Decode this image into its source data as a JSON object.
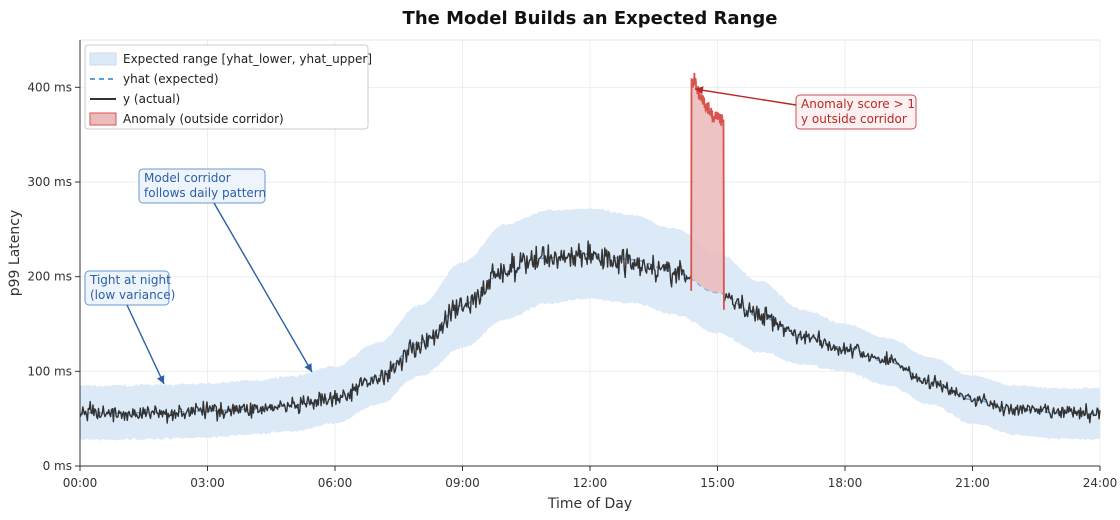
{
  "chart_data": {
    "type": "line",
    "title": "The Model Builds an Expected Range",
    "xlabel": "Time of Day",
    "ylabel": "p99 Latency",
    "x_unit": "hours",
    "xlim": [
      0,
      24
    ],
    "ylim": [
      0,
      450
    ],
    "x_ticks": [
      0,
      3,
      6,
      9,
      12,
      15,
      18,
      21,
      24
    ],
    "x_tick_labels": [
      "00:00",
      "03:00",
      "06:00",
      "09:00",
      "12:00",
      "15:00",
      "18:00",
      "21:00",
      "24:00"
    ],
    "y_ticks": [
      0,
      100,
      200,
      300,
      400
    ],
    "y_tick_labels": [
      "0 ms",
      "100 ms",
      "200 ms",
      "300 ms",
      "400 ms"
    ],
    "grid": true,
    "legend_position": "top-left",
    "series": [
      {
        "name": "Expected range  [yhat_lower, yhat_upper]",
        "kind": "band",
        "color": "#dce9f7",
        "x": [
          0,
          1,
          2,
          3,
          4,
          5,
          6,
          7,
          8,
          9,
          10,
          11,
          12,
          13,
          14,
          15,
          16,
          17,
          18,
          19,
          20,
          21,
          22,
          23,
          24
        ],
        "lower": [
          28,
          28,
          29,
          30,
          33,
          37,
          45,
          65,
          95,
          125,
          155,
          172,
          177,
          172,
          160,
          140,
          120,
          107,
          100,
          85,
          65,
          45,
          33,
          29,
          28
        ],
        "upper": [
          85,
          85,
          86,
          87,
          90,
          95,
          105,
          130,
          170,
          215,
          255,
          270,
          272,
          265,
          250,
          225,
          195,
          165,
          150,
          135,
          115,
          95,
          85,
          82,
          82
        ]
      },
      {
        "name": "yhat  (expected)",
        "kind": "line",
        "style": "dashed",
        "color": "#5aa0dc",
        "x": [
          0,
          1,
          2,
          3,
          4,
          5,
          6,
          7,
          8,
          9,
          10,
          11,
          12,
          13,
          14,
          15,
          16,
          17,
          18,
          19,
          20,
          21,
          22,
          23,
          24
        ],
        "values": [
          56,
          56,
          57,
          58,
          60,
          64,
          72,
          95,
          130,
          170,
          205,
          220,
          224,
          218,
          205,
          183,
          158,
          136,
          125,
          110,
          90,
          70,
          60,
          56,
          55
        ]
      },
      {
        "name": "y  (actual)",
        "kind": "line",
        "color": "#333333",
        "x": [
          0,
          1,
          2,
          3,
          4,
          5,
          6,
          7,
          8,
          9,
          10,
          11,
          12,
          13,
          14,
          15,
          16,
          17,
          18,
          19,
          20,
          21,
          22,
          23,
          24
        ],
        "values": [
          57,
          55,
          56,
          59,
          60,
          63,
          70,
          93,
          128,
          168,
          207,
          221,
          222,
          216,
          204,
          180,
          160,
          138,
          123,
          112,
          88,
          71,
          59,
          57,
          55
        ]
      },
      {
        "name": "Anomaly  (outside corridor)",
        "kind": "anomaly",
        "color": "#d9534f",
        "fill": "#ebbcbc",
        "x": [
          14.38,
          14.45,
          14.55,
          14.65,
          14.75,
          14.85,
          14.95,
          15.05,
          15.15
        ],
        "values": [
          185,
          408,
          395,
          385,
          378,
          372,
          370,
          368,
          165
        ]
      }
    ],
    "annotations": [
      {
        "text": [
          "Tight at night",
          "(low variance)"
        ],
        "x": 2.0,
        "y": 85,
        "color": "#2b5fa8"
      },
      {
        "text": [
          "Model corridor",
          "follows daily pattern"
        ],
        "x": 5.5,
        "y": 100,
        "color": "#2b5fa8"
      },
      {
        "text": [
          "Anomaly score > 1",
          "y outside corridor"
        ],
        "x": 14.5,
        "y": 408,
        "color": "#b52b27"
      }
    ]
  }
}
